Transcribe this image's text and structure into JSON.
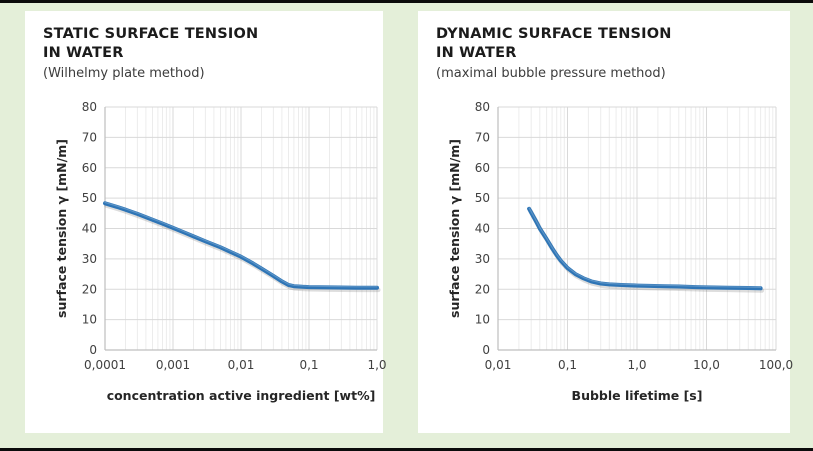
{
  "page": {
    "background_color": "#e4efd9",
    "border_color": "#0b0b0b",
    "panel_color": "#ffffff"
  },
  "chart_data": [
    {
      "type": "line",
      "title_lines": [
        "STATIC SURFACE TENSION",
        "IN WATER"
      ],
      "subtitle": "(Wilhelmy plate method)",
      "xlabel": "concentration active ingredient  [wt%]",
      "ylabel": "surface tension γ [mN/m]",
      "x_scale": "log",
      "xlim": [
        0.0001,
        1.0
      ],
      "ylim": [
        0,
        80
      ],
      "y_ticks": [
        0,
        10,
        20,
        30,
        40,
        50,
        60,
        70,
        80
      ],
      "x_tick_values": [
        0.0001,
        0.001,
        0.01,
        0.1,
        1.0
      ],
      "x_tick_labels": [
        "0,0001",
        "0,001",
        "0,01",
        "0,1",
        "1,0"
      ],
      "grid": true,
      "legend": "none",
      "line_color": "#2e75b6",
      "x": [
        0.0001,
        0.00015,
        0.0002,
        0.0003,
        0.0005,
        0.0007,
        0.001,
        0.0015,
        0.002,
        0.003,
        0.005,
        0.007,
        0.01,
        0.015,
        0.02,
        0.03,
        0.04,
        0.05,
        0.06,
        0.08,
        0.1,
        0.2,
        0.5,
        1.0
      ],
      "y": [
        48.3,
        47.1,
        46.2,
        44.8,
        42.9,
        41.6,
        40.2,
        38.6,
        37.4,
        35.8,
        33.8,
        32.3,
        30.7,
        28.5,
        26.8,
        24.4,
        22.6,
        21.4,
        21.0,
        20.8,
        20.7,
        20.6,
        20.5,
        20.5
      ]
    },
    {
      "type": "line",
      "title_lines": [
        "DYNAMIC SURFACE TENSION",
        "IN WATER"
      ],
      "subtitle": "(maximal bubble pressure method)",
      "xlabel": "Bubble lifetime [s]",
      "ylabel": "surface tension γ [mN/m]",
      "x_scale": "log",
      "xlim": [
        0.01,
        100.0
      ],
      "ylim": [
        0,
        80
      ],
      "y_ticks": [
        0,
        10,
        20,
        30,
        40,
        50,
        60,
        70,
        80
      ],
      "x_tick_values": [
        0.01,
        0.1,
        1.0,
        10.0,
        100.0
      ],
      "x_tick_labels": [
        "0,01",
        "0,1",
        "1,0",
        "10,0",
        "100,0"
      ],
      "grid": true,
      "legend": "none",
      "line_color": "#2e75b6",
      "x": [
        0.028,
        0.035,
        0.04,
        0.05,
        0.06,
        0.07,
        0.08,
        0.1,
        0.13,
        0.17,
        0.22,
        0.3,
        0.4,
        0.6,
        1.0,
        1.5,
        2.5,
        4,
        7,
        10,
        20,
        40,
        60
      ],
      "y": [
        46.5,
        42.5,
        40.0,
        36.5,
        33.5,
        31.2,
        29.4,
        27.0,
        25.0,
        23.6,
        22.6,
        21.9,
        21.6,
        21.4,
        21.2,
        21.1,
        21.0,
        20.9,
        20.7,
        20.6,
        20.5,
        20.4,
        20.3
      ]
    }
  ],
  "style": {
    "grid_major_color": "#d9d9d9",
    "grid_minor_color": "#ececec",
    "axis_color": "#bfbfbf",
    "tick_text_color": "#404040"
  }
}
